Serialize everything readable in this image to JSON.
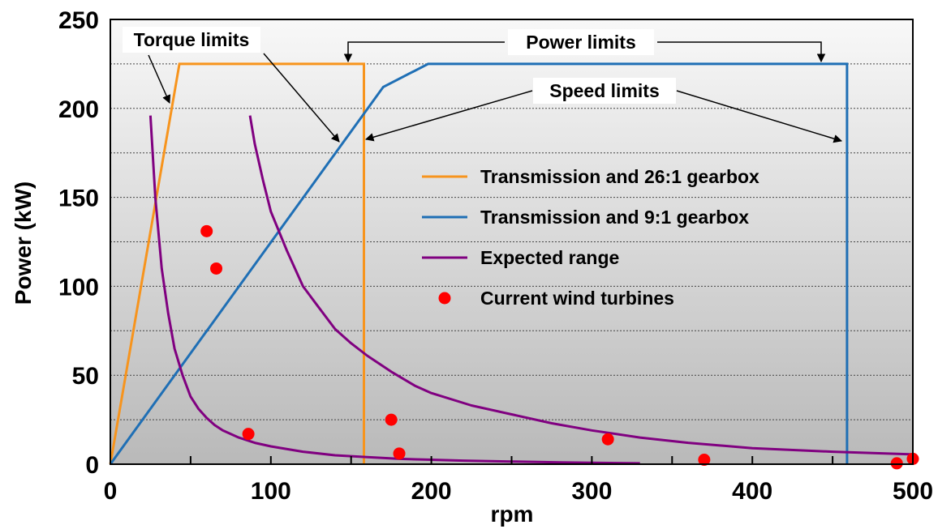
{
  "chart_data": {
    "type": "line",
    "title": "",
    "xlabel": "rpm",
    "ylabel": "Power (kW)",
    "xlim": [
      0,
      500
    ],
    "ylim": [
      0,
      250
    ],
    "x_ticks": [
      0,
      100,
      200,
      300,
      400,
      500
    ],
    "x_minor_ticks": [
      50,
      150,
      250,
      350,
      450
    ],
    "y_ticks": [
      0,
      50,
      100,
      150,
      200,
      250
    ],
    "grid": "horizontal dotted",
    "legend_placement": "center-right",
    "series": [
      {
        "name": "Transmission and 26:1 gearbox",
        "kind": "line",
        "color": "#F7941D",
        "x": [
          0,
          43,
          158,
          158
        ],
        "y": [
          0,
          225,
          225,
          0
        ]
      },
      {
        "name": "Transmission and 9:1 gearbox",
        "kind": "line",
        "color": "#1F6FB5",
        "x": [
          0,
          170,
          198,
          459,
          459
        ],
        "y": [
          0,
          212,
          225,
          225,
          0
        ]
      },
      {
        "name": "Expected range",
        "kind": "line",
        "color": "#800080",
        "curves": [
          {
            "x": [
              25,
              28,
              32,
              36,
              40,
              45,
              50,
              55,
              60,
              65,
              70,
              80,
              90,
              100,
              120,
              140,
              160,
              180,
              200,
              220,
              250,
              280,
              300,
              330
            ],
            "y": [
              196,
              150,
              110,
              85,
              65,
              50,
              38,
              31,
              26,
              22,
              19,
              15,
              12,
              10,
              7,
              5,
              4,
              3,
              2.5,
              2,
              1.5,
              1,
              0.8,
              0.5
            ]
          },
          {
            "x": [
              87,
              90,
              95,
              100,
              110,
              120,
              130,
              140,
              150,
              160,
              175,
              190,
              200,
              225,
              250,
              275,
              300,
              330,
              360,
              400,
              450,
              500
            ],
            "y": [
              196,
              180,
              160,
              142,
              120,
              100,
              88,
              76,
              68,
              61,
              52,
              44,
              40,
              33,
              28,
              23,
              19,
              15,
              12,
              9,
              7,
              5.5
            ]
          }
        ]
      },
      {
        "name": "Current wind turbines",
        "kind": "scatter",
        "color": "#FF0000",
        "x": [
          60,
          66,
          86,
          175,
          180,
          310,
          370,
          490,
          500
        ],
        "y": [
          131,
          110,
          17,
          25,
          6,
          14,
          2.5,
          0.5,
          3
        ]
      }
    ],
    "annotations": [
      {
        "text": "Torque limits"
      },
      {
        "text": "Power limits"
      },
      {
        "text": "Speed limits"
      }
    ]
  }
}
